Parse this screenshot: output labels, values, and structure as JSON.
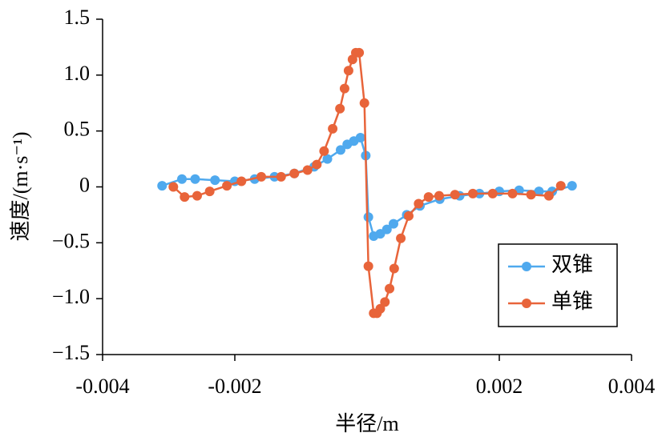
{
  "chart_data": {
    "type": "line",
    "xlabel": "半径/m",
    "ylabel": "速度/(m·s⁻¹)",
    "xlim": [
      -0.004,
      0.004
    ],
    "xticks": [
      -0.004,
      -0.002,
      0.002,
      0.004
    ],
    "ylim": [
      -1.5,
      1.5
    ],
    "yticks": [
      {
        "value": 1.5,
        "label": "1.5"
      },
      {
        "value": 1,
        "label": "1.0"
      },
      {
        "value": 0.5,
        "label": "0.5"
      },
      0,
      {
        "value": -0.5,
        "label": "−0.5"
      },
      {
        "value": -1,
        "label": "−1.0"
      },
      {
        "value": -1.5,
        "label": "−1.5"
      }
    ],
    "legend": "lower right",
    "series": [
      {
        "name": "双锥",
        "color": "#4fa9ee",
        "x": [
          -0.0031,
          -0.0028,
          -0.0026,
          -0.0023,
          -0.002,
          -0.0017,
          -0.0014,
          -0.0011,
          -0.0008,
          -0.0006,
          -0.0004,
          -0.0003,
          -0.0002,
          -0.0001,
          -2e-05,
          2e-05,
          0.0001,
          0.0002,
          0.0003,
          0.0004,
          0.0006,
          0.0008,
          0.0011,
          0.0014,
          0.0017,
          0.002,
          0.0023,
          0.0026,
          0.0028,
          0.0031
        ],
        "values": [
          0.01,
          0.07,
          0.07,
          0.06,
          0.05,
          0.07,
          0.09,
          0.12,
          0.18,
          0.25,
          0.33,
          0.38,
          0.41,
          0.44,
          0.28,
          -0.27,
          -0.44,
          -0.42,
          -0.38,
          -0.33,
          -0.25,
          -0.17,
          -0.11,
          -0.08,
          -0.06,
          -0.04,
          -0.03,
          -0.04,
          -0.04,
          0.01
        ]
      },
      {
        "name": "单锥",
        "color": "#e8643a",
        "x": [
          -0.00293,
          -0.00276,
          -0.00257,
          -0.00238,
          -0.00212,
          -0.0019,
          -0.0016,
          -0.0013,
          -0.0011,
          -0.0009,
          -0.00076,
          -0.00065,
          -0.00052,
          -0.00041,
          -0.00034,
          -0.00028,
          -0.00022,
          -0.00017,
          -0.00012,
          -4e-05,
          2e-05,
          0.0001,
          0.00015,
          0.0002,
          0.00027,
          0.00034,
          0.00041,
          0.00051,
          0.00063,
          0.00078,
          0.00093,
          0.00109,
          0.00133,
          0.0016,
          0.0019,
          0.0022,
          0.00248,
          0.00275,
          0.00293
        ],
        "values": [
          0,
          -0.09,
          -0.08,
          -0.04,
          0.01,
          0.05,
          0.09,
          0.09,
          0.12,
          0.15,
          0.2,
          0.32,
          0.52,
          0.7,
          0.88,
          1.04,
          1.14,
          1.2,
          1.2,
          0.75,
          -0.71,
          -1.13,
          -1.13,
          -1.09,
          -1.03,
          -0.91,
          -0.73,
          -0.46,
          -0.26,
          -0.15,
          -0.09,
          -0.08,
          -0.07,
          -0.06,
          -0.06,
          -0.06,
          -0.07,
          -0.08,
          0.01
        ]
      }
    ]
  }
}
